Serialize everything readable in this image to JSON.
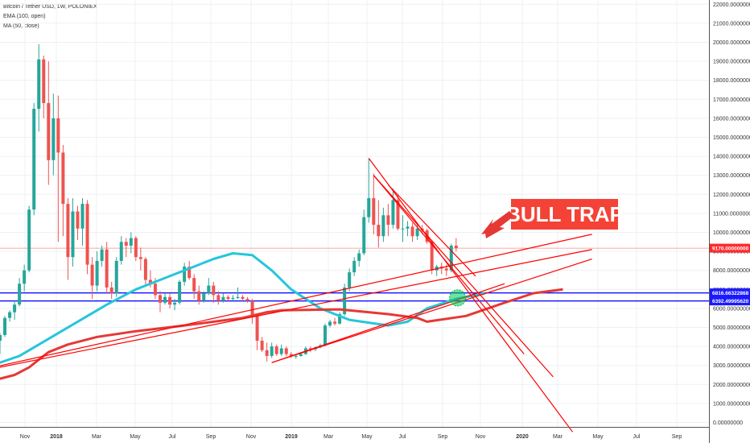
{
  "header": {
    "symbol": "Bitcoin / Tether USD, 1W, POLONIEX",
    "indicator1": "EMA (100, open)",
    "indicator2": "MA (50, close)"
  },
  "colors": {
    "up": "#26a69a",
    "down": "#ef5350",
    "ema": "#e53935",
    "ma": "#26c6da",
    "trend": "#ff0000",
    "support": "#1a1aff",
    "current": "#ff1111",
    "highlight": "#00c853"
  },
  "chart_data": {
    "type": "candlestick",
    "y_range": [
      0,
      22300
    ],
    "y_ticks": [
      "0.00000000",
      "1000.00000000",
      "2000.00000000",
      "3000.00000000",
      "4000.00000000",
      "5000.00000000",
      "6000.00000000",
      "7000.00000000",
      "8000.00000000",
      "9000.00000000",
      "10000.00000000",
      "11000.00000000",
      "12000.00000000",
      "13000.00000000",
      "14000.00000000",
      "15000.00000000",
      "16000.00000000",
      "17000.00000000",
      "18000.00000000",
      "19000.00000000",
      "20000.00000000",
      "21000.00000000",
      "22000.00000000"
    ],
    "x_ticks": [
      {
        "label": "Nov",
        "bold": false
      },
      {
        "label": "2018",
        "bold": true
      },
      {
        "label": "Mar",
        "bold": false
      },
      {
        "label": "May",
        "bold": false
      },
      {
        "label": "Jul",
        "bold": false
      },
      {
        "label": "Sep",
        "bold": false
      },
      {
        "label": "Nov",
        "bold": false
      },
      {
        "label": "2019",
        "bold": true
      },
      {
        "label": "Mar",
        "bold": false
      },
      {
        "label": "May",
        "bold": false
      },
      {
        "label": "Jul",
        "bold": false
      },
      {
        "label": "Sep",
        "bold": false
      },
      {
        "label": "Nov",
        "bold": false
      },
      {
        "label": "2020",
        "bold": true
      },
      {
        "label": "Mar",
        "bold": false
      },
      {
        "label": "May",
        "bold": false
      },
      {
        "label": "Jul",
        "bold": false
      },
      {
        "label": "Sep",
        "bold": false
      }
    ],
    "candles": [
      [
        4300,
        4700,
        3600,
        4600
      ],
      [
        4600,
        5600,
        4500,
        5500
      ],
      [
        5500,
        5900,
        5300,
        5800
      ],
      [
        5800,
        6400,
        5400,
        6200
      ],
      [
        6200,
        7600,
        6100,
        7300
      ],
      [
        7300,
        8300,
        6900,
        8000
      ],
      [
        8000,
        11400,
        7900,
        11200
      ],
      [
        11200,
        16800,
        10900,
        16500
      ],
      [
        16500,
        19900,
        15300,
        19100
      ],
      [
        19100,
        19300,
        16000,
        16800
      ],
      [
        16800,
        19000,
        12500,
        13800
      ],
      [
        13800,
        17300,
        13000,
        16000
      ],
      [
        16000,
        17200,
        9500,
        14200
      ],
      [
        14200,
        14600,
        9800,
        11500
      ],
      [
        11500,
        11800,
        7500,
        8700
      ],
      [
        8700,
        11800,
        8200,
        11100
      ],
      [
        11100,
        11400,
        9600,
        10200
      ],
      [
        10200,
        11800,
        9300,
        11500
      ],
      [
        11500,
        11700,
        7800,
        8300
      ],
      [
        8300,
        8700,
        6500,
        7200
      ],
      [
        7200,
        9000,
        6900,
        8500
      ],
      [
        8500,
        9300,
        8200,
        9100
      ],
      [
        9100,
        9500,
        6800,
        7100
      ],
      [
        7100,
        7400,
        6500,
        6800
      ],
      [
        6800,
        8700,
        6600,
        8500
      ],
      [
        8500,
        9800,
        8300,
        9500
      ],
      [
        9500,
        9700,
        8700,
        9300
      ],
      [
        9300,
        10000,
        8900,
        9700
      ],
      [
        9700,
        9800,
        8500,
        8700
      ],
      [
        8700,
        9200,
        8000,
        8600
      ],
      [
        8600,
        8700,
        7200,
        7500
      ],
      [
        7500,
        8000,
        7100,
        7300
      ],
      [
        7300,
        7600,
        6500,
        6700
      ],
      [
        6700,
        6900,
        5800,
        6300
      ],
      [
        6300,
        6800,
        6200,
        6600
      ],
      [
        6600,
        6800,
        6000,
        6200
      ],
      [
        6200,
        6500,
        5900,
        6300
      ],
      [
        6300,
        7500,
        6200,
        7400
      ],
      [
        7400,
        8400,
        7200,
        8200
      ],
      [
        8200,
        8500,
        7500,
        7600
      ],
      [
        7600,
        7800,
        6500,
        6900
      ],
      [
        6900,
        7200,
        6200,
        6400
      ],
      [
        6400,
        6900,
        6300,
        6800
      ],
      [
        6800,
        7600,
        6700,
        7200
      ],
      [
        7200,
        7400,
        6300,
        6700
      ],
      [
        6700,
        6900,
        6200,
        6400
      ],
      [
        6400,
        6800,
        6300,
        6600
      ],
      [
        6600,
        6700,
        6400,
        6500
      ],
      [
        6500,
        6700,
        6400,
        6550
      ],
      [
        6550,
        7100,
        6500,
        6600
      ],
      [
        6600,
        6700,
        6450,
        6500
      ],
      [
        6500,
        6600,
        6300,
        6400
      ],
      [
        6400,
        6500,
        5200,
        5600
      ],
      [
        5600,
        5700,
        3800,
        4300
      ],
      [
        4300,
        4500,
        3700,
        3800
      ],
      [
        3800,
        4200,
        3200,
        3500
      ],
      [
        3500,
        4200,
        3400,
        4000
      ],
      [
        4000,
        4100,
        3500,
        3600
      ],
      [
        3600,
        4100,
        3500,
        3900
      ],
      [
        3900,
        4000,
        3500,
        3600
      ],
      [
        3600,
        3700,
        3400,
        3500
      ],
      [
        3500,
        3600,
        3350,
        3500
      ],
      [
        3500,
        3700,
        3450,
        3600
      ],
      [
        3600,
        4000,
        3550,
        3900
      ],
      [
        3900,
        4000,
        3700,
        3850
      ],
      [
        3850,
        4000,
        3750,
        3950
      ],
      [
        3950,
        4150,
        3900,
        4050
      ],
      [
        4050,
        5200,
        4000,
        5100
      ],
      [
        5100,
        5400,
        5000,
        5300
      ],
      [
        5300,
        5500,
        5100,
        5200
      ],
      [
        5200,
        5800,
        5150,
        5700
      ],
      [
        5700,
        7300,
        5600,
        7100
      ],
      [
        7100,
        8100,
        6900,
        7900
      ],
      [
        7900,
        8700,
        7700,
        8500
      ],
      [
        8500,
        9100,
        8200,
        8900
      ],
      [
        8900,
        11200,
        8800,
        10800
      ],
      [
        10800,
        13900,
        10500,
        11800
      ],
      [
        11800,
        13100,
        9900,
        10400
      ],
      [
        10400,
        11700,
        9200,
        9800
      ],
      [
        9800,
        11300,
        9500,
        10900
      ],
      [
        10900,
        11500,
        9800,
        10400
      ],
      [
        10400,
        12300,
        10200,
        11700
      ],
      [
        11700,
        12000,
        10100,
        10200
      ],
      [
        10200,
        10900,
        9500,
        10200
      ],
      [
        10200,
        10600,
        9800,
        10300
      ],
      [
        10300,
        10500,
        9500,
        9800
      ],
      [
        9800,
        10400,
        9600,
        10200
      ],
      [
        10200,
        10400,
        9900,
        10100
      ],
      [
        10100,
        10200,
        9400,
        9500
      ],
      [
        9500,
        9600,
        7800,
        8000
      ],
      [
        8000,
        8300,
        7700,
        8200
      ],
      [
        8200,
        8400,
        7800,
        8100
      ],
      [
        8100,
        8300,
        7700,
        8000
      ],
      [
        8000,
        9400,
        7900,
        9300
      ],
      [
        9300,
        9700,
        9000,
        9170
      ]
    ],
    "ema_100_open": [
      [
        -12,
        2100
      ],
      [
        0,
        2300
      ],
      [
        3,
        2500
      ],
      [
        6,
        2900
      ],
      [
        8,
        3300
      ],
      [
        10,
        3700
      ],
      [
        14,
        4100
      ],
      [
        20,
        4500
      ],
      [
        28,
        4800
      ],
      [
        38,
        5100
      ],
      [
        50,
        5500
      ],
      [
        55,
        5800
      ],
      [
        58,
        5900
      ],
      [
        70,
        5950
      ],
      [
        80,
        5700
      ],
      [
        86,
        5500
      ],
      [
        88,
        5300
      ],
      [
        96,
        5600
      ],
      [
        104,
        6300
      ],
      [
        110,
        6800
      ],
      [
        116,
        7000
      ]
    ],
    "ma_50_close": [
      [
        -12,
        2500
      ],
      [
        -4,
        2800
      ],
      [
        4,
        3500
      ],
      [
        10,
        4400
      ],
      [
        16,
        5300
      ],
      [
        22,
        6200
      ],
      [
        28,
        7000
      ],
      [
        34,
        7600
      ],
      [
        40,
        8200
      ],
      [
        44,
        8600
      ],
      [
        48,
        8900
      ],
      [
        52,
        8800
      ],
      [
        56,
        8000
      ],
      [
        60,
        7000
      ],
      [
        66,
        6000
      ],
      [
        72,
        5400
      ],
      [
        80,
        5100
      ],
      [
        84,
        5300
      ],
      [
        88,
        6000
      ],
      [
        94,
        6500
      ],
      [
        100,
        6800
      ]
    ],
    "horizontal_levels": [
      {
        "label": "6816.66322868",
        "value": 6816.66
      },
      {
        "label": "6392.49995620",
        "value": 6392.5
      },
      {
        "label": "9170.00000000",
        "value": 9170
      }
    ],
    "trend_lines": [
      [
        [
          -12,
          2300
        ],
        [
          122,
          9900
        ]
      ],
      [
        [
          -12,
          2300
        ],
        [
          122,
          9100
        ]
      ],
      [
        [
          56,
          3150
        ],
        [
          122,
          8600
        ]
      ],
      [
        [
          56,
          3150
        ],
        [
          104,
          7300
        ]
      ],
      [
        [
          76,
          13900
        ],
        [
          118,
          -500
        ]
      ],
      [
        [
          77,
          13000
        ],
        [
          108,
          3600
        ]
      ],
      [
        [
          77,
          13000
        ],
        [
          114,
          2400
        ]
      ],
      [
        [
          80,
          12500
        ],
        [
          98,
          7700
        ]
      ]
    ],
    "highlight_circle": [
      94.3,
      6550
    ],
    "annotation": "BULL TRAP"
  }
}
